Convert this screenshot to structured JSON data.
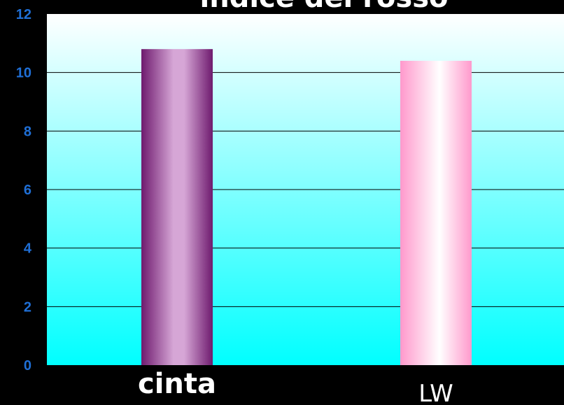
{
  "chart_data": {
    "type": "bar",
    "title": "indice del rosso",
    "categories": [
      "cinta",
      "LW"
    ],
    "values": [
      10.8,
      10.4
    ],
    "xlabel": "",
    "ylabel": "",
    "ylim": [
      0,
      12
    ],
    "yticks": [
      "0",
      "2",
      "4",
      "6",
      "8",
      "10",
      "12"
    ],
    "grid": true,
    "legend": "none",
    "colors": {
      "background": "#000000",
      "plot_top": "#ffffff",
      "plot_bottom": "#00ffff",
      "bar_cinta_dark": "#6e1a6e",
      "bar_cinta_light": "#d6a6d6",
      "bar_lw_dark": "#ff99cc",
      "bar_lw_light": "#ffffff",
      "tick_label": "#1f6fd6"
    }
  }
}
